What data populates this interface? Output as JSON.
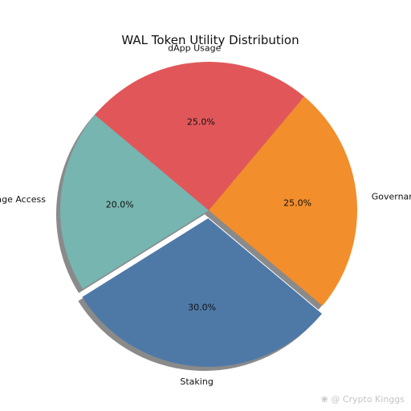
{
  "chart_data": {
    "type": "pie",
    "title": "WAL Token Utility Distribution",
    "start_angle_deg": 140,
    "direction": "counterclockwise",
    "shadow": true,
    "slices": [
      {
        "label": "Storage Access",
        "value": 20.0,
        "pct_label": "20.0%",
        "color": "#76b5b0",
        "explode": false
      },
      {
        "label": "Staking",
        "value": 30.0,
        "pct_label": "30.0%",
        "color": "#4e79a7",
        "explode": true
      },
      {
        "label": "Governance",
        "value": 25.0,
        "pct_label": "25.0%",
        "color": "#f28e2b",
        "explode": false
      },
      {
        "label": "dApp Usage",
        "value": 25.0,
        "pct_label": "25.0%",
        "color": "#e15759",
        "explode": false
      }
    ]
  },
  "watermark": {
    "text": "@ Crypto Kinggs"
  }
}
